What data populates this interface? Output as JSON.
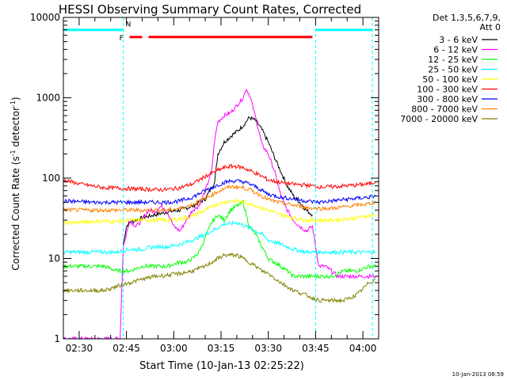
{
  "chart_data": {
    "type": "line",
    "title": "HESSI Observing Summary Count Rates, Corrected",
    "xlabel": "Start Time (10-Jan-13 02:25:22)",
    "ylabel_main": "Corrected Count Rate (s",
    "ylabel_sup1": "-1",
    "ylabel_mid": " detector",
    "ylabel_sup2": "-1",
    "ylabel_end": ")",
    "yscale": "log",
    "ylim": [
      1,
      10000
    ],
    "xlim_minutes": [
      -5,
      95
    ],
    "x_ticks": [
      {
        "label": "02:30",
        "t": 0
      },
      {
        "label": "02:45",
        "t": 15
      },
      {
        "label": "03:00",
        "t": 30
      },
      {
        "label": "03:15",
        "t": 45
      },
      {
        "label": "03:30",
        "t": 60
      },
      {
        "label": "03:45",
        "t": 75
      },
      {
        "label": "04:00",
        "t": 90
      }
    ],
    "y_ticks": [
      {
        "label": "1",
        "v": 1
      },
      {
        "label": "10",
        "v": 10
      },
      {
        "label": "100",
        "v": 100
      },
      {
        "label": "1000",
        "v": 1000
      },
      {
        "label": "10000",
        "v": 10000
      }
    ],
    "legend_header": [
      "Det 1,3,5,6,7,9,",
      "Att 0"
    ],
    "series": [
      {
        "name": "3 - 6 keV",
        "color": "#000000",
        "points": [
          [
            14,
            15
          ],
          [
            15,
            25
          ],
          [
            16,
            28
          ],
          [
            18,
            30
          ],
          [
            20,
            32
          ],
          [
            24,
            35
          ],
          [
            28,
            38
          ],
          [
            32,
            40
          ],
          [
            36,
            45
          ],
          [
            40,
            55
          ],
          [
            43,
            90
          ],
          [
            44,
            200
          ],
          [
            46,
            280
          ],
          [
            48,
            330
          ],
          [
            50,
            380
          ],
          [
            52,
            450
          ],
          [
            54,
            570
          ],
          [
            56,
            520
          ],
          [
            58,
            400
          ],
          [
            60,
            280
          ],
          [
            62,
            180
          ],
          [
            64,
            120
          ],
          [
            66,
            80
          ],
          [
            68,
            60
          ],
          [
            70,
            50
          ],
          [
            72,
            40
          ],
          [
            74,
            35
          ]
        ]
      },
      {
        "name": "6 - 12 keV",
        "color": "#ff00ff",
        "points": [
          [
            -5,
            1
          ],
          [
            0,
            1
          ],
          [
            5,
            1
          ],
          [
            10,
            1
          ],
          [
            13,
            1
          ],
          [
            14,
            14
          ],
          [
            15,
            20
          ],
          [
            16,
            30
          ],
          [
            18,
            25
          ],
          [
            20,
            30
          ],
          [
            22,
            40
          ],
          [
            24,
            38
          ],
          [
            26,
            45
          ],
          [
            28,
            38
          ],
          [
            30,
            25
          ],
          [
            32,
            22
          ],
          [
            34,
            30
          ],
          [
            36,
            40
          ],
          [
            38,
            45
          ],
          [
            40,
            70
          ],
          [
            42,
            120
          ],
          [
            43,
            300
          ],
          [
            44,
            500
          ],
          [
            46,
            600
          ],
          [
            48,
            650
          ],
          [
            50,
            800
          ],
          [
            52,
            1000
          ],
          [
            53,
            1300
          ],
          [
            54,
            1100
          ],
          [
            55,
            800
          ],
          [
            56,
            560
          ],
          [
            57,
            380
          ],
          [
            58,
            260
          ],
          [
            60,
            200
          ],
          [
            62,
            120
          ],
          [
            64,
            60
          ],
          [
            66,
            40
          ],
          [
            68,
            30
          ],
          [
            70,
            25
          ],
          [
            72,
            22
          ],
          [
            74,
            25
          ],
          [
            76,
            8
          ],
          [
            78,
            8
          ],
          [
            80,
            7
          ],
          [
            82,
            6
          ],
          [
            84,
            6
          ],
          [
            86,
            6
          ],
          [
            88,
            6
          ],
          [
            90,
            6
          ],
          [
            92,
            6
          ],
          [
            94,
            6
          ]
        ]
      },
      {
        "name": "12 - 25 keV",
        "color": "#00ff00",
        "points": [
          [
            -5,
            8
          ],
          [
            0,
            8
          ],
          [
            5,
            8
          ],
          [
            8,
            8
          ],
          [
            12,
            7
          ],
          [
            16,
            7
          ],
          [
            20,
            8
          ],
          [
            24,
            8
          ],
          [
            28,
            8
          ],
          [
            32,
            9
          ],
          [
            34,
            9
          ],
          [
            36,
            10
          ],
          [
            38,
            12
          ],
          [
            40,
            18
          ],
          [
            42,
            28
          ],
          [
            44,
            35
          ],
          [
            46,
            30
          ],
          [
            48,
            40
          ],
          [
            50,
            45
          ],
          [
            52,
            50
          ],
          [
            54,
            25
          ],
          [
            56,
            20
          ],
          [
            58,
            14
          ],
          [
            60,
            10
          ],
          [
            62,
            9
          ],
          [
            64,
            8
          ],
          [
            66,
            7
          ],
          [
            68,
            6
          ],
          [
            70,
            6
          ],
          [
            72,
            6
          ],
          [
            74,
            6
          ],
          [
            76,
            6
          ],
          [
            80,
            6
          ],
          [
            84,
            7
          ],
          [
            88,
            7
          ],
          [
            92,
            8
          ],
          [
            94,
            8
          ]
        ]
      },
      {
        "name": "25 - 50 keV",
        "color": "#00ffff",
        "points": [
          [
            -5,
            12
          ],
          [
            0,
            12
          ],
          [
            4,
            12
          ],
          [
            8,
            12
          ],
          [
            12,
            12
          ],
          [
            16,
            13
          ],
          [
            20,
            13
          ],
          [
            24,
            14
          ],
          [
            28,
            14
          ],
          [
            32,
            15
          ],
          [
            36,
            17
          ],
          [
            40,
            20
          ],
          [
            44,
            24
          ],
          [
            46,
            27
          ],
          [
            48,
            27
          ],
          [
            50,
            28
          ],
          [
            52,
            26
          ],
          [
            54,
            24
          ],
          [
            56,
            22
          ],
          [
            58,
            20
          ],
          [
            60,
            17
          ],
          [
            64,
            15
          ],
          [
            68,
            13
          ],
          [
            72,
            12
          ],
          [
            76,
            12
          ],
          [
            80,
            12
          ],
          [
            84,
            12
          ],
          [
            88,
            12
          ],
          [
            92,
            12
          ],
          [
            94,
            12
          ]
        ]
      },
      {
        "name": "50 - 100 keV",
        "color": "#ffff00",
        "points": [
          [
            -5,
            28
          ],
          [
            0,
            28
          ],
          [
            4,
            29
          ],
          [
            8,
            29
          ],
          [
            12,
            29
          ],
          [
            16,
            30
          ],
          [
            20,
            30
          ],
          [
            24,
            30
          ],
          [
            28,
            30
          ],
          [
            32,
            31
          ],
          [
            36,
            34
          ],
          [
            40,
            40
          ],
          [
            44,
            48
          ],
          [
            46,
            50
          ],
          [
            48,
            52
          ],
          [
            50,
            52
          ],
          [
            52,
            50
          ],
          [
            54,
            48
          ],
          [
            56,
            46
          ],
          [
            58,
            42
          ],
          [
            60,
            40
          ],
          [
            64,
            35
          ],
          [
            68,
            32
          ],
          [
            72,
            30
          ],
          [
            76,
            30
          ],
          [
            80,
            30
          ],
          [
            84,
            31
          ],
          [
            88,
            32
          ],
          [
            92,
            34
          ],
          [
            94,
            35
          ]
        ]
      },
      {
        "name": "100 - 300 keV",
        "color": "#ff0000",
        "points": [
          [
            -5,
            95
          ],
          [
            0,
            85
          ],
          [
            4,
            80
          ],
          [
            8,
            76
          ],
          [
            12,
            75
          ],
          [
            16,
            74
          ],
          [
            20,
            73
          ],
          [
            24,
            72
          ],
          [
            28,
            72
          ],
          [
            32,
            76
          ],
          [
            36,
            85
          ],
          [
            40,
            105
          ],
          [
            44,
            125
          ],
          [
            46,
            135
          ],
          [
            48,
            140
          ],
          [
            50,
            140
          ],
          [
            52,
            135
          ],
          [
            54,
            125
          ],
          [
            56,
            115
          ],
          [
            58,
            105
          ],
          [
            60,
            95
          ],
          [
            64,
            88
          ],
          [
            68,
            84
          ],
          [
            72,
            82
          ],
          [
            76,
            78
          ],
          [
            80,
            78
          ],
          [
            84,
            80
          ],
          [
            88,
            82
          ],
          [
            92,
            85
          ],
          [
            94,
            90
          ]
        ]
      },
      {
        "name": "300 - 800 keV",
        "color": "#0000ff",
        "points": [
          [
            -5,
            52
          ],
          [
            0,
            51
          ],
          [
            4,
            50
          ],
          [
            8,
            50
          ],
          [
            12,
            50
          ],
          [
            16,
            50
          ],
          [
            20,
            50
          ],
          [
            24,
            50
          ],
          [
            28,
            50
          ],
          [
            32,
            52
          ],
          [
            36,
            58
          ],
          [
            40,
            70
          ],
          [
            44,
            82
          ],
          [
            46,
            88
          ],
          [
            48,
            92
          ],
          [
            50,
            92
          ],
          [
            52,
            90
          ],
          [
            54,
            85
          ],
          [
            56,
            78
          ],
          [
            58,
            70
          ],
          [
            60,
            63
          ],
          [
            64,
            58
          ],
          [
            68,
            55
          ],
          [
            72,
            52
          ],
          [
            76,
            50
          ],
          [
            80,
            52
          ],
          [
            84,
            54
          ],
          [
            88,
            56
          ],
          [
            92,
            58
          ],
          [
            94,
            60
          ]
        ]
      },
      {
        "name": "800 - 7000 keV",
        "color": "#ff8000",
        "points": [
          [
            -5,
            40
          ],
          [
            0,
            40
          ],
          [
            4,
            40
          ],
          [
            8,
            40
          ],
          [
            12,
            40
          ],
          [
            16,
            40
          ],
          [
            20,
            40
          ],
          [
            24,
            40
          ],
          [
            28,
            40
          ],
          [
            32,
            42
          ],
          [
            36,
            47
          ],
          [
            40,
            56
          ],
          [
            44,
            68
          ],
          [
            46,
            74
          ],
          [
            48,
            78
          ],
          [
            50,
            78
          ],
          [
            52,
            76
          ],
          [
            54,
            72
          ],
          [
            56,
            66
          ],
          [
            58,
            60
          ],
          [
            60,
            54
          ],
          [
            64,
            49
          ],
          [
            68,
            46
          ],
          [
            72,
            43
          ],
          [
            76,
            42
          ],
          [
            80,
            42
          ],
          [
            84,
            44
          ],
          [
            88,
            46
          ],
          [
            92,
            48
          ],
          [
            94,
            50
          ]
        ]
      },
      {
        "name": "7000 - 20000 keV",
        "color": "#808000",
        "points": [
          [
            -5,
            4
          ],
          [
            0,
            4
          ],
          [
            4,
            4
          ],
          [
            8,
            4
          ],
          [
            12,
            4.5
          ],
          [
            16,
            5
          ],
          [
            20,
            5.5
          ],
          [
            24,
            6
          ],
          [
            28,
            6.2
          ],
          [
            32,
            6.5
          ],
          [
            36,
            7
          ],
          [
            40,
            8
          ],
          [
            44,
            10
          ],
          [
            46,
            11
          ],
          [
            48,
            11
          ],
          [
            50,
            11
          ],
          [
            52,
            10
          ],
          [
            54,
            9
          ],
          [
            56,
            8
          ],
          [
            58,
            7
          ],
          [
            60,
            6.5
          ],
          [
            64,
            5
          ],
          [
            68,
            4
          ],
          [
            72,
            3.5
          ],
          [
            76,
            3
          ],
          [
            80,
            3
          ],
          [
            84,
            3
          ],
          [
            88,
            3.5
          ],
          [
            92,
            5
          ],
          [
            94,
            5.5
          ]
        ]
      }
    ],
    "annotations": {
      "state_level": 7000,
      "night_segments": [
        [
          -5,
          14
        ],
        [
          75,
          93
        ]
      ],
      "flare_segments": [
        [
          16,
          20
        ],
        [
          22,
          74
        ]
      ],
      "flare_level": 5700,
      "boundaries": [
        {
          "t": 14,
          "label": "N"
        },
        {
          "t": 75,
          "label": ""
        },
        {
          "t": 93,
          "label": ""
        }
      ],
      "flare_marker": "F",
      "night_marker": "N"
    },
    "colors": {
      "night": "#00ffff",
      "flare": "#ff0000"
    }
  },
  "footer": {
    "date_stamp": "10-Jan-2013 08:59"
  }
}
